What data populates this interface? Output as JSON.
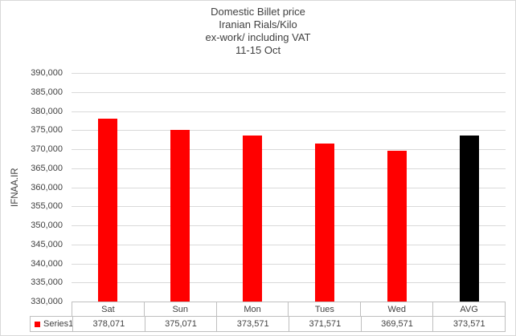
{
  "chart_data": {
    "type": "bar",
    "title_lines": [
      "Domestic Billet price",
      "Iranian Rials/Kilo",
      "ex-work/ including VAT",
      "11-15 Oct"
    ],
    "ylabel": "IFNAA.IR",
    "categories": [
      "Sat",
      "Sun",
      "Mon",
      "Tues",
      "Wed",
      "AVG"
    ],
    "series": [
      {
        "name": "Series1",
        "values": [
          378071,
          375071,
          373571,
          371571,
          369571,
          373571
        ]
      }
    ],
    "bar_colors": [
      "#ff0000",
      "#ff0000",
      "#ff0000",
      "#ff0000",
      "#ff0000",
      "#000000"
    ],
    "value_labels": [
      "378,071",
      "375,071",
      "373,571",
      "371,571",
      "369,571",
      "373,571"
    ],
    "ylim": [
      330000,
      390000
    ],
    "ytick_step": 5000,
    "ytick_labels": [
      "390,000",
      "385,000",
      "380,000",
      "375,000",
      "370,000",
      "365,000",
      "360,000",
      "355,000",
      "350,000",
      "345,000",
      "340,000",
      "335,000",
      "330,000"
    ],
    "grid": true,
    "legend": {
      "name": "Series1",
      "marker_color": "#ff0000",
      "position": "bottom-left"
    }
  },
  "colors": {
    "bar_red": "#ff0000",
    "bar_avg_black": "#000000",
    "gridline": "#d9d9d9",
    "table_border": "#bfbfbf",
    "text": "#3f3f3f",
    "background": "#ffffff"
  }
}
